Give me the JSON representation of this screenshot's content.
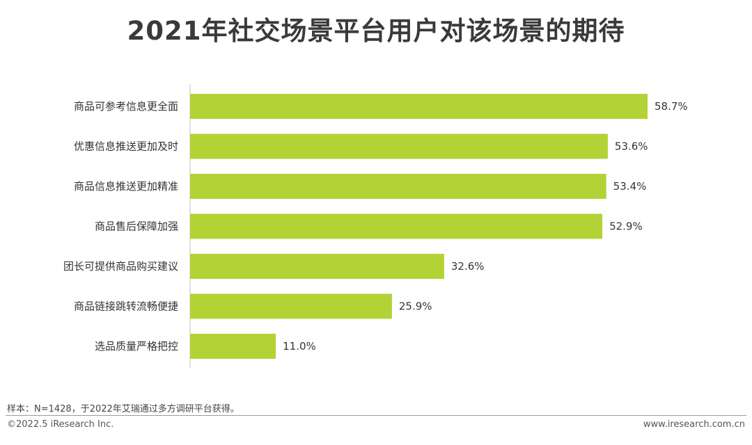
{
  "page": {
    "title": "2021年社交场景平台用户对该场景的期待",
    "footnote": "样本：N=1428，于2022年艾瑞通过多方调研平台获得。",
    "copyright": "©2022.5 iResearch Inc.",
    "website": "www.iresearch.com.cn"
  },
  "chart_data": {
    "type": "bar",
    "orientation": "horizontal",
    "title": "2021年社交场景平台用户对该场景的期待",
    "categories": [
      "商品可参考信息更全面",
      "优惠信息推送更加及时",
      "商品信息推送更加精准",
      "商品售后保障加强",
      "团长可提供商品购买建议",
      "商品链接跳转流畅便捷",
      "选品质量严格把控"
    ],
    "values": [
      58.7,
      53.6,
      53.4,
      52.9,
      32.6,
      25.9,
      11.0
    ],
    "value_labels": [
      "58.7%",
      "53.6%",
      "53.4%",
      "52.9%",
      "32.6%",
      "25.9%",
      "11.0%"
    ],
    "unit": "%",
    "xlim": [
      0,
      58.7
    ],
    "grid": false,
    "legend": "none",
    "bar_color": "#b3d235",
    "axis_color": "#bfbfbf"
  }
}
